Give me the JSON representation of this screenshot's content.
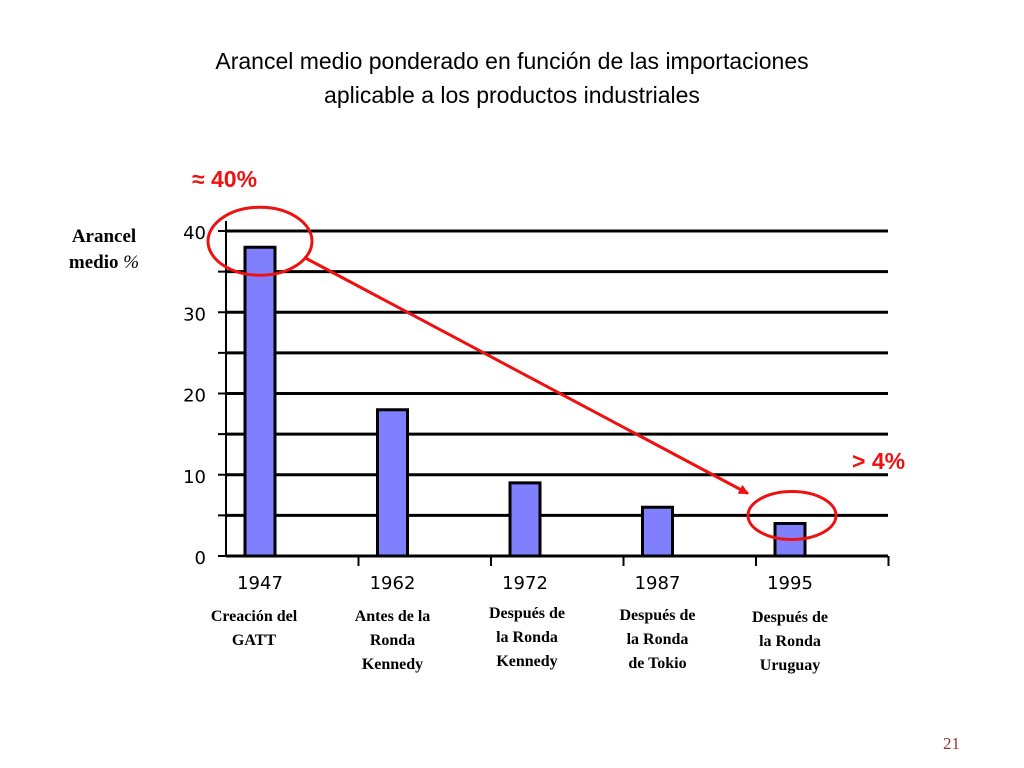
{
  "title": {
    "line1": "Arancel medio ponderado en función de las importaciones",
    "line2": "aplicable a los productos industriales"
  },
  "annotations": {
    "top": "≈ 40%",
    "bottom": "> 4%"
  },
  "era_labels": [
    [
      "Creación del",
      "GATT"
    ],
    [
      "Antes de la",
      "Ronda",
      "Kennedy"
    ],
    [
      "Después de",
      "la Ronda",
      "Kennedy"
    ],
    [
      "Después de",
      "la Ronda",
      "de Tokio"
    ],
    [
      "Después de",
      "la Ronda",
      "Uruguay"
    ]
  ],
  "slide_number": "21",
  "colors": {
    "bar_fill": "#8080ff",
    "bar_stroke": "#000000",
    "annotation": "#ee1111",
    "slide_number": "#993333"
  },
  "chart_data": {
    "type": "bar",
    "title": "Arancel medio ponderado en función de las importaciones aplicable a los productos industriales",
    "ylabel": "Arancel medio %",
    "xlabel": "",
    "categories": [
      "1947",
      "1962",
      "1972",
      "1987",
      "1995"
    ],
    "values": [
      38,
      18,
      9,
      6,
      4
    ],
    "ylim": [
      0,
      40
    ],
    "yticks": [
      0,
      10,
      20,
      30,
      40
    ],
    "grid": true,
    "legend": "none"
  }
}
